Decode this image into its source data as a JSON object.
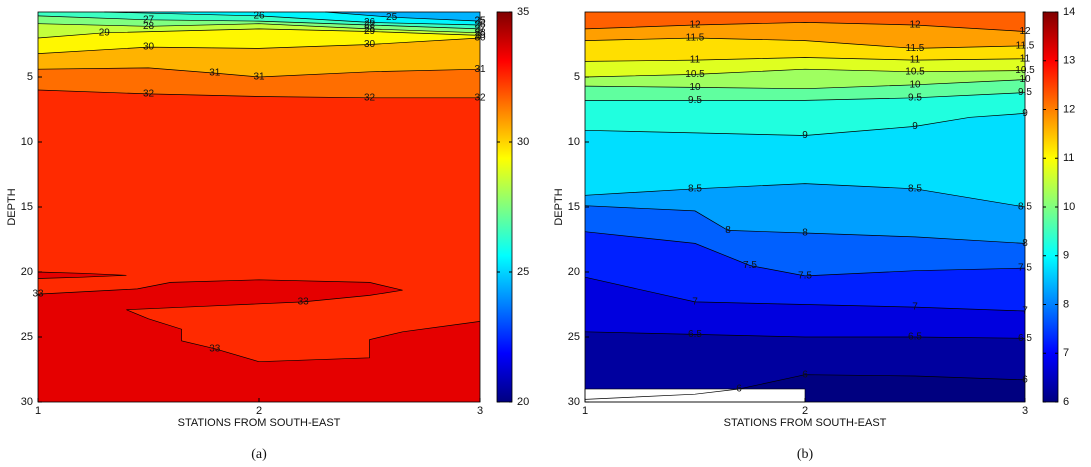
{
  "chart_data": [
    {
      "type": "contour",
      "xlabel": "STATIONS FROM SOUTH-EAST",
      "ylabel": "DEPTH",
      "caption": "(a)",
      "xlim": [
        1,
        3
      ],
      "xticks": [
        1,
        2,
        3
      ],
      "ylim": [
        30,
        0
      ],
      "yticks": [
        5,
        10,
        15,
        20,
        25,
        30
      ],
      "colorbar": {
        "lim": [
          20,
          35
        ],
        "ticks": [
          20,
          25,
          30,
          35
        ]
      },
      "contours": [
        {
          "level": 25,
          "x": [
            2.3,
            2.6,
            3
          ],
          "y": [
            0,
            0.4,
            0.7
          ]
        },
        {
          "level": 26,
          "x": [
            1.3,
            2,
            2.5,
            3
          ],
          "y": [
            0,
            0.3,
            0.8,
            1.0
          ]
        },
        {
          "level": 27,
          "x": [
            1,
            1.5,
            2,
            2.5,
            3
          ],
          "y": [
            0.3,
            0.6,
            0.7,
            1.0,
            1.3
          ]
        },
        {
          "level": 28,
          "x": [
            1,
            1.5,
            2,
            2.5,
            3
          ],
          "y": [
            0.9,
            1.1,
            0.9,
            1.3,
            1.6
          ]
        },
        {
          "level": 29,
          "x": [
            1,
            1.3,
            2,
            2.5,
            3
          ],
          "y": [
            2.0,
            1.6,
            1.3,
            1.5,
            1.8
          ]
        },
        {
          "level": 30,
          "x": [
            1,
            1.5,
            2,
            2.5,
            3
          ],
          "y": [
            3.2,
            2.7,
            2.8,
            2.5,
            2.0
          ]
        },
        {
          "level": 31,
          "x": [
            1,
            1.5,
            1.8,
            2,
            2.5,
            3
          ],
          "y": [
            4.4,
            4.3,
            4.7,
            5.0,
            4.6,
            4.4
          ]
        },
        {
          "level": 32,
          "x": [
            1,
            1.5,
            2,
            2.5,
            3
          ],
          "y": [
            6.0,
            6.3,
            6.5,
            6.6,
            6.6
          ]
        },
        {
          "level": 33,
          "x": [
            1,
            1.2,
            1.4,
            1.2,
            1,
            null,
            1,
            1.45,
            1.6,
            2,
            2.5,
            2.65,
            2.5,
            2.2,
            1.8,
            1.4,
            1.5,
            1.65,
            1.65,
            1.8,
            2,
            2.5,
            2.5,
            2.65,
            3
          ],
          "y": [
            20.0,
            20.1,
            20.25,
            20.4,
            20.5,
            null,
            21.7,
            21.3,
            20.8,
            20.6,
            20.8,
            21.4,
            21.8,
            22.3,
            22.6,
            22.9,
            23.6,
            24.4,
            25.3,
            25.9,
            26.9,
            26.6,
            25.2,
            24.6,
            23.8
          ]
        }
      ]
    },
    {
      "type": "contour",
      "xlabel": "STATIONS FROM SOUTH-EAST",
      "ylabel": "DEPTH",
      "caption": "(b)",
      "xlim": [
        1,
        3
      ],
      "xticks": [
        1,
        2,
        3
      ],
      "ylim": [
        30,
        0
      ],
      "yticks": [
        5,
        10,
        15,
        20,
        25,
        30
      ],
      "colorbar": {
        "lim": [
          6,
          14
        ],
        "ticks": [
          6,
          7,
          8,
          9,
          10,
          11,
          12,
          13,
          14
        ]
      },
      "contours": [
        {
          "level": 12,
          "x": [
            1,
            1.5,
            2,
            2.5,
            3
          ],
          "y": [
            1.3,
            1.0,
            0.8,
            1.0,
            1.5
          ]
        },
        {
          "level": 11.5,
          "x": [
            1,
            1.5,
            2,
            2.5,
            3
          ],
          "y": [
            2.2,
            2.0,
            2.2,
            2.8,
            2.6
          ]
        },
        {
          "level": 11,
          "x": [
            1,
            1.5,
            2,
            2.5,
            3
          ],
          "y": [
            3.8,
            3.7,
            3.5,
            3.7,
            3.6
          ]
        },
        {
          "level": 10.5,
          "x": [
            1,
            1.5,
            2,
            2.5,
            3
          ],
          "y": [
            5.0,
            4.8,
            4.4,
            4.6,
            4.5
          ]
        },
        {
          "level": 10,
          "x": [
            1,
            1.5,
            2,
            2.5,
            3
          ],
          "y": [
            5.7,
            5.8,
            5.9,
            5.6,
            5.2
          ]
        },
        {
          "level": 9.5,
          "x": [
            1,
            1.5,
            2,
            2.5,
            3
          ],
          "y": [
            6.8,
            6.8,
            6.8,
            6.6,
            6.2
          ]
        },
        {
          "level": 9,
          "x": [
            1,
            1.5,
            2,
            2.5,
            2.75,
            3
          ],
          "y": [
            9.1,
            9.3,
            9.5,
            8.8,
            8.1,
            7.8
          ]
        },
        {
          "level": 8.5,
          "x": [
            1,
            1.5,
            2,
            2.5,
            3
          ],
          "y": [
            14.1,
            13.6,
            13.2,
            13.6,
            15.0
          ]
        },
        {
          "level": 8,
          "x": [
            1,
            1.5,
            1.65,
            2,
            2.5,
            3
          ],
          "y": [
            14.9,
            15.3,
            16.8,
            17.0,
            17.3,
            17.8
          ]
        },
        {
          "level": 7.5,
          "x": [
            1,
            1.5,
            1.75,
            2,
            2.5,
            3
          ],
          "y": [
            16.9,
            17.8,
            19.5,
            20.3,
            19.9,
            19.7
          ]
        },
        {
          "level": 7,
          "x": [
            1,
            1.5,
            2,
            2.5,
            3
          ],
          "y": [
            20.4,
            22.3,
            22.5,
            22.7,
            23.0
          ]
        },
        {
          "level": 6.5,
          "x": [
            1,
            1.5,
            2,
            2.5,
            3
          ],
          "y": [
            24.6,
            24.8,
            25.0,
            25.0,
            25.1
          ]
        },
        {
          "level": 6,
          "x": [
            1,
            1.5,
            1.7,
            2,
            2.5,
            3
          ],
          "y": [
            29.8,
            29.4,
            29.0,
            27.9,
            28.0,
            28.3
          ]
        }
      ]
    }
  ]
}
